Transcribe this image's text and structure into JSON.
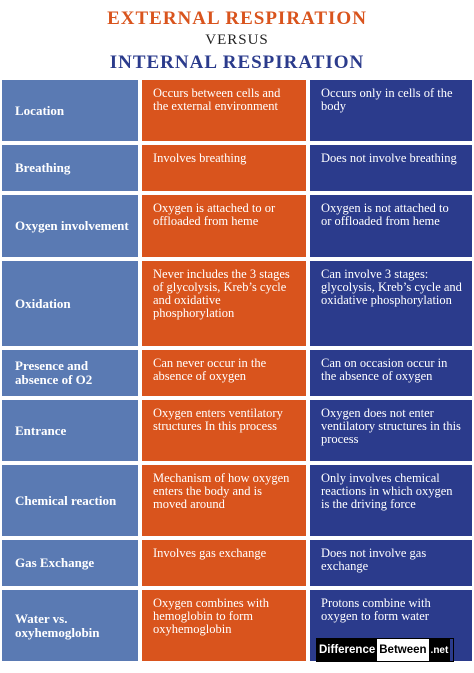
{
  "header": {
    "title_external": "EXTERNAL RESPIRATION",
    "versus": "VERSUS",
    "title_internal": "INTERNAL RESPIRATION"
  },
  "rows": [
    {
      "label": "Location",
      "external": "Occurs between cells and the external environment",
      "internal": "Occurs only in cells of the body"
    },
    {
      "label": "Breathing",
      "external": "Involves breathing",
      "internal": "Does not involve breathing"
    },
    {
      "label": "Oxygen involvement",
      "external": "Oxygen is attached to or offloaded from heme",
      "internal": "Oxygen is not attached to or offloaded from heme"
    },
    {
      "label": "Oxidation",
      "external": "Never includes the 3 stages of glycolysis, Kreb’s cycle and oxidative phosphorylation",
      "internal": "Can involve 3 stages: glycolysis, Kreb’s cycle and oxidative phosphorylation"
    },
    {
      "label": "Presence and absence of O2",
      "external": "Can never occur in the absence of oxygen",
      "internal": "Can on occasion occur in the absence of oxygen"
    },
    {
      "label": "Entrance",
      "external": "Oxygen enters ventilatory structures In this process",
      "internal": "Oxygen does not enter ventilatory structures in this process"
    },
    {
      "label": "Chemical reaction",
      "external": "Mechanism of how oxygen enters the body and is moved around",
      "internal": "Only involves chemical reactions in which oxygen is the driving force"
    },
    {
      "label": "Gas Exchange",
      "external": "Involves gas exchange",
      "internal": "Does not involve gas exchange"
    },
    {
      "label": "Water vs. oxyhemoglobin",
      "external": "Oxygen combines with hemoglobin to form oxyhemoglobin",
      "internal": "Protons combine with oxygen to form water"
    }
  ],
  "watermark": {
    "part1": "Difference",
    "part2": "Between",
    "part3": ".net"
  },
  "colors": {
    "external": "#d9541d",
    "internal": "#2b3b8c",
    "label": "#5a7ab3"
  }
}
